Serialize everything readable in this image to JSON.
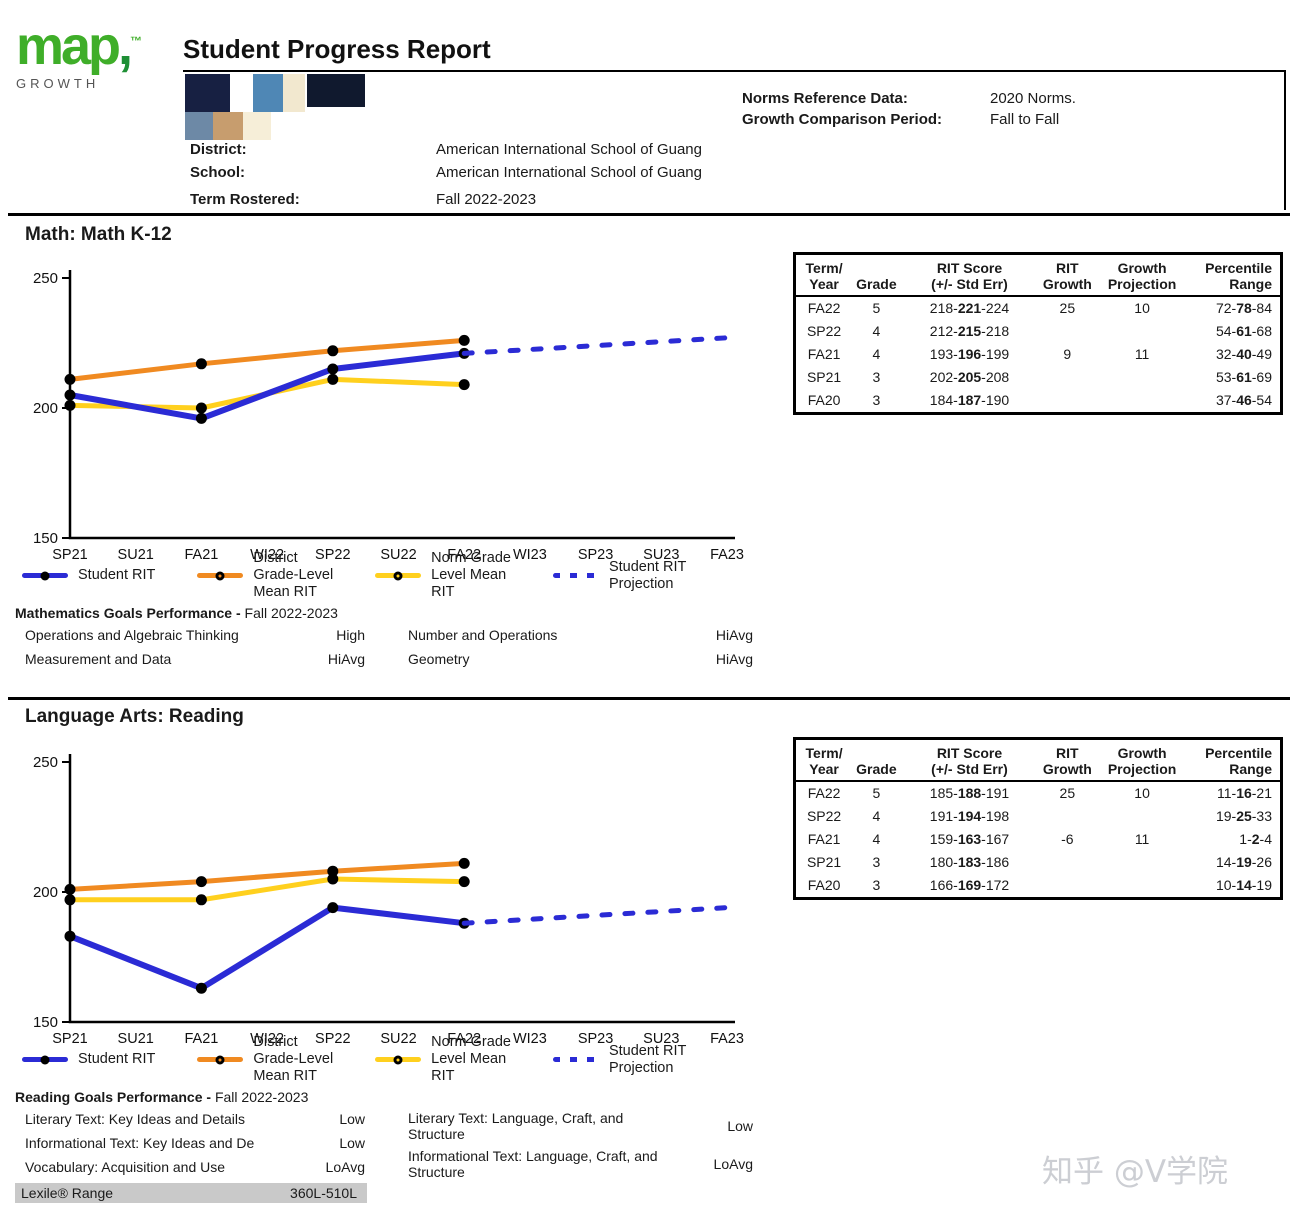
{
  "page": {
    "watermark": "知乎 @V学院"
  },
  "header": {
    "logo_brand": "map",
    "logo_comma": ",",
    "logo_tm": "™",
    "logo_sub": "GROWTH",
    "title": "Student Progress Report",
    "meta_right": [
      {
        "label": "Norms Reference Data:",
        "value": "2020 Norms."
      },
      {
        "label": "Growth Comparison Period:",
        "value": "Fall to Fall"
      }
    ],
    "meta_left": [
      {
        "label": "District:",
        "value": "American International School of Guang"
      },
      {
        "label": "School:",
        "value": "American International School of Guang"
      },
      {
        "label": "Term Rostered:",
        "value": "Fall 2022-2023"
      }
    ]
  },
  "colors": {
    "student_blue": "#2b2bd5",
    "district_orange": "#f08a21",
    "norm_yellow": "#ffd01e",
    "dot_black": "#000000",
    "logo_green": "#3fae29"
  },
  "table_headers": [
    [
      "Term/",
      "Year"
    ],
    [
      "",
      "Grade"
    ],
    [
      "RIT Score",
      "(+/- Std Err)"
    ],
    [
      "RIT",
      "Growth"
    ],
    [
      "Growth",
      "Projection"
    ],
    [
      "Percentile",
      "Range"
    ]
  ],
  "math": {
    "section_title": "Math: Math K-12",
    "table_rows": [
      {
        "term": "FA22",
        "grade": "5",
        "rit": [
          "218",
          "221",
          "224"
        ],
        "growth": "25",
        "projection": "10",
        "percentile": [
          "72",
          "78",
          "84"
        ]
      },
      {
        "term": "SP22",
        "grade": "4",
        "rit": [
          "212",
          "215",
          "218"
        ],
        "growth": "",
        "projection": "",
        "percentile": [
          "54",
          "61",
          "68"
        ]
      },
      {
        "term": "FA21",
        "grade": "4",
        "rit": [
          "193",
          "196",
          "199"
        ],
        "growth": "9",
        "projection": "11",
        "percentile": [
          "32",
          "40",
          "49"
        ]
      },
      {
        "term": "SP21",
        "grade": "3",
        "rit": [
          "202",
          "205",
          "208"
        ],
        "growth": "",
        "projection": "",
        "percentile": [
          "53",
          "61",
          "69"
        ]
      },
      {
        "term": "FA20",
        "grade": "3",
        "rit": [
          "184",
          "187",
          "190"
        ],
        "growth": "",
        "projection": "",
        "percentile": [
          "37",
          "46",
          "54"
        ]
      }
    ],
    "goals_title_bold": "Mathematics Goals Performance - ",
    "goals_title_rest": "Fall 2022-2023",
    "goals_left": [
      {
        "label": "Operations and Algebraic Thinking",
        "value": "High"
      },
      {
        "label": "Measurement and Data",
        "value": "HiAvg"
      }
    ],
    "goals_right": [
      {
        "label": "Number and Operations",
        "value": "HiAvg"
      },
      {
        "label": "Geometry",
        "value": "HiAvg"
      }
    ]
  },
  "reading": {
    "section_title": "Language Arts: Reading",
    "table_rows": [
      {
        "term": "FA22",
        "grade": "5",
        "rit": [
          "185",
          "188",
          "191"
        ],
        "growth": "25",
        "projection": "10",
        "percentile": [
          "11",
          "16",
          "21"
        ]
      },
      {
        "term": "SP22",
        "grade": "4",
        "rit": [
          "191",
          "194",
          "198"
        ],
        "growth": "",
        "projection": "",
        "percentile": [
          "19",
          "25",
          "33"
        ]
      },
      {
        "term": "FA21",
        "grade": "4",
        "rit": [
          "159",
          "163",
          "167"
        ],
        "growth": "-6",
        "projection": "11",
        "percentile": [
          "1",
          "2",
          "4"
        ]
      },
      {
        "term": "SP21",
        "grade": "3",
        "rit": [
          "180",
          "183",
          "186"
        ],
        "growth": "",
        "projection": "",
        "percentile": [
          "14",
          "19",
          "26"
        ]
      },
      {
        "term": "FA20",
        "grade": "3",
        "rit": [
          "166",
          "169",
          "172"
        ],
        "growth": "",
        "projection": "",
        "percentile": [
          "10",
          "14",
          "19"
        ]
      }
    ],
    "goals_title_bold": "Reading Goals Performance - ",
    "goals_title_rest": "Fall 2022-2023",
    "goals_left": [
      {
        "label": "Literary Text: Key Ideas and Details",
        "value": "Low"
      },
      {
        "label": "Informational Text: Key Ideas and De",
        "value": "Low"
      },
      {
        "label": "Vocabulary: Acquisition and Use",
        "value": "LoAvg"
      }
    ],
    "goals_right": [
      {
        "label": "Literary Text: Language, Craft, and Structure",
        "value": "Low"
      },
      {
        "label": "Informational Text: Language, Craft, and Structure",
        "value": "LoAvg"
      }
    ],
    "lexile_label": "Lexile® Range",
    "lexile_value": "360L-510L"
  },
  "legend": [
    {
      "key": "student-rit",
      "lines": [
        "Student RIT"
      ],
      "style": "solid",
      "color": "#2b2bd5",
      "dot": "solid"
    },
    {
      "key": "district-grade-level-mean-rit",
      "lines": [
        "District",
        "Grade-Level",
        "Mean RIT"
      ],
      "style": "solid",
      "color": "#f08a21",
      "dot": "ring"
    },
    {
      "key": "norm-grade-level-mean-rit",
      "lines": [
        "Norm Grade",
        "Level Mean",
        "RIT"
      ],
      "style": "solid",
      "color": "#ffd01e",
      "dot": "ring"
    },
    {
      "key": "student-rit-projection",
      "lines": [
        "Student RIT",
        "Projection"
      ],
      "style": "dashed",
      "color": "#2b2bd5",
      "dot": "none"
    }
  ],
  "chart_data": [
    {
      "type": "line",
      "title": "Math: Math K-12 RIT trend",
      "categories": [
        "SP21",
        "SU21",
        "FA21",
        "WI22",
        "SP22",
        "SU22",
        "FA22",
        "WI23",
        "SP23",
        "SU23",
        "FA23"
      ],
      "ylim": [
        150,
        250
      ],
      "yticks": [
        150,
        200,
        250
      ],
      "grid": false,
      "legend_position": "bottom",
      "series": [
        {
          "name": "District Grade-Level Mean RIT",
          "points": [
            [
              0,
              211
            ],
            [
              2,
              217
            ],
            [
              4,
              222
            ],
            [
              6,
              226
            ]
          ],
          "color": "#f08a21",
          "width": 5
        },
        {
          "name": "Norm Grade Level Mean RIT",
          "points": [
            [
              0,
              201
            ],
            [
              2,
              200
            ],
            [
              4,
              211
            ],
            [
              6,
              209
            ]
          ],
          "color": "#ffd01e",
          "width": 5
        },
        {
          "name": "Student RIT",
          "points": [
            [
              0,
              205
            ],
            [
              2,
              196
            ],
            [
              4,
              215
            ],
            [
              6,
              221
            ]
          ],
          "color": "#2b2bd5",
          "width": 6
        },
        {
          "name": "Student RIT Projection",
          "points": [
            [
              6,
              221
            ],
            [
              10,
              227
            ]
          ],
          "color": "#2b2bd5",
          "width": 5,
          "dashed": true
        }
      ]
    },
    {
      "type": "line",
      "title": "Language Arts: Reading RIT trend",
      "categories": [
        "SP21",
        "SU21",
        "FA21",
        "WI22",
        "SP22",
        "SU22",
        "FA22",
        "WI23",
        "SP23",
        "SU23",
        "FA23"
      ],
      "ylim": [
        150,
        250
      ],
      "yticks": [
        150,
        200,
        250
      ],
      "grid": false,
      "legend_position": "bottom",
      "series": [
        {
          "name": "District Grade-Level Mean RIT",
          "points": [
            [
              0,
              201
            ],
            [
              2,
              204
            ],
            [
              4,
              208
            ],
            [
              6,
              211
            ]
          ],
          "color": "#f08a21",
          "width": 5
        },
        {
          "name": "Norm Grade Level Mean RIT",
          "points": [
            [
              0,
              197
            ],
            [
              2,
              197
            ],
            [
              4,
              205
            ],
            [
              6,
              204
            ]
          ],
          "color": "#ffd01e",
          "width": 5
        },
        {
          "name": "Student RIT",
          "points": [
            [
              0,
              183
            ],
            [
              2,
              163
            ],
            [
              4,
              194
            ],
            [
              6,
              188
            ]
          ],
          "color": "#2b2bd5",
          "width": 6
        },
        {
          "name": "Student RIT Projection",
          "points": [
            [
              6,
              188
            ],
            [
              10,
              194
            ]
          ],
          "color": "#2b2bd5",
          "width": 5,
          "dashed": true
        }
      ]
    }
  ]
}
